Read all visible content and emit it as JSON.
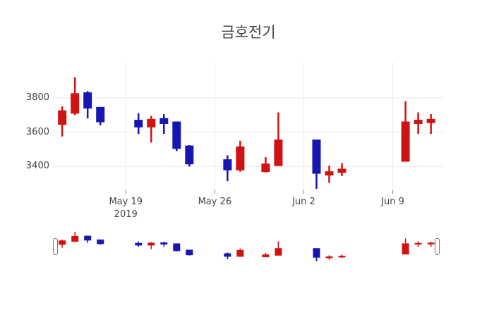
{
  "chart_data": {
    "type": "candlestick",
    "title": "금호전기",
    "legend": false,
    "grid": true,
    "dates": [
      "May 14",
      "May 15",
      "May 16",
      "May 17",
      "May 20",
      "May 21",
      "May 22",
      "May 23",
      "May 24",
      "May 27",
      "May 28",
      "May 30",
      "May 31",
      "Jun 3",
      "Jun 4",
      "Jun 5",
      "Jun 10",
      "Jun 11",
      "Jun 12"
    ],
    "day_offsets": [
      -5,
      -4,
      -3,
      -2,
      1,
      2,
      3,
      4,
      5,
      8,
      9,
      11,
      12,
      15,
      16,
      17,
      22,
      23,
      24
    ],
    "open": [
      3645,
      3710,
      3830,
      3745,
      3670,
      3630,
      3680,
      3660,
      3520,
      3440,
      3380,
      3370,
      3405,
      3555,
      3350,
      3365,
      3430,
      3650,
      3655
    ],
    "high": [
      3750,
      3920,
      3840,
      3745,
      3710,
      3695,
      3705,
      3660,
      3525,
      3465,
      3550,
      3455,
      3715,
      3555,
      3405,
      3420,
      3780,
      3715,
      3705
    ],
    "low": [
      3575,
      3700,
      3680,
      3640,
      3590,
      3540,
      3590,
      3490,
      3400,
      3315,
      3370,
      3365,
      3405,
      3270,
      3305,
      3345,
      3430,
      3590,
      3590
    ],
    "close": [
      3725,
      3825,
      3740,
      3660,
      3630,
      3675,
      3650,
      3505,
      3415,
      3380,
      3515,
      3415,
      3555,
      3360,
      3370,
      3385,
      3660,
      3670,
      3675
    ],
    "x_ticks": [
      {
        "label": "May 19",
        "sublabel": "2019",
        "offset": 0
      },
      {
        "label": "May 26",
        "sublabel": "",
        "offset": 7
      },
      {
        "label": "Jun 2",
        "sublabel": "",
        "offset": 14
      },
      {
        "label": "Jun 9",
        "sublabel": "",
        "offset": 21
      }
    ],
    "y_ticks": [
      3400,
      3600,
      3800
    ],
    "y_range": [
      3262,
      4009
    ],
    "x_range_days": [
      -5.73,
      25.02
    ],
    "rangeslider": {
      "visible": true,
      "value_range": [
        3270,
        3925
      ]
    },
    "colors": {
      "increasing": "#cf1212",
      "decreasing": "#1616b0",
      "grid": "#ebebeb",
      "text": "#444444",
      "tick_mark": "#888888",
      "background": "#ffffff"
    }
  }
}
